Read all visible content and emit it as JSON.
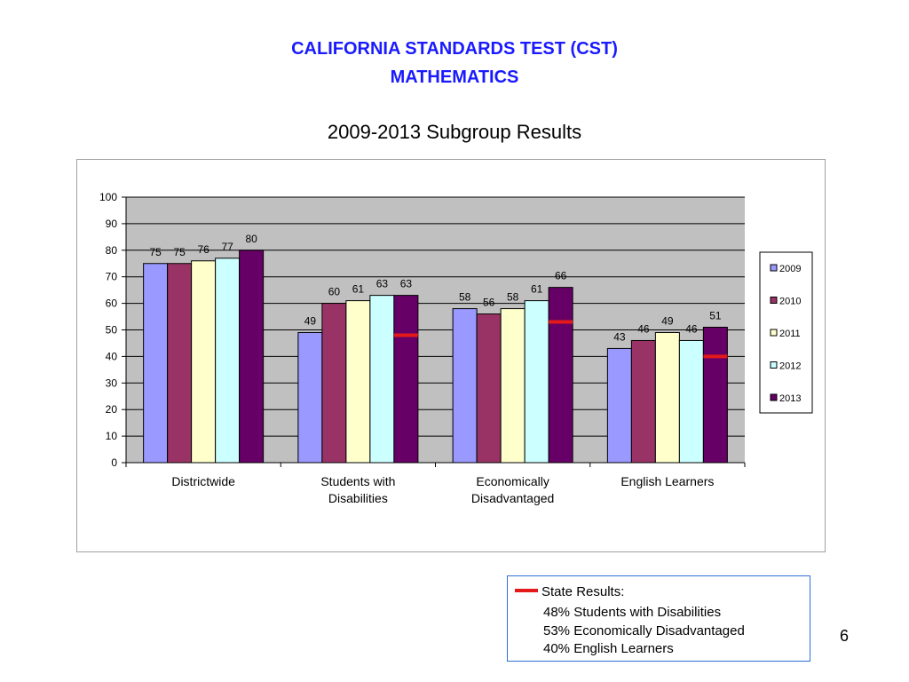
{
  "title_line1": "CALIFORNIA STANDARDS TEST (CST)",
  "title_line2": "MATHEMATICS",
  "subtitle": "2009-2013 Subgroup Results",
  "chart_data": {
    "type": "bar",
    "title": "",
    "xlabel": "",
    "ylabel": "",
    "ylim": [
      0,
      100
    ],
    "yticks": [
      0,
      10,
      20,
      30,
      40,
      50,
      60,
      70,
      80,
      90,
      100
    ],
    "grid": true,
    "legend_position": "right",
    "categories": [
      "Districtwide",
      "Students with Disabilities",
      "Economically Disadvantaged",
      "English Learners"
    ],
    "category_label_lines": [
      [
        "Districtwide"
      ],
      [
        "Students with",
        "Disabilities"
      ],
      [
        "Economically",
        "Disadvantaged"
      ],
      [
        "English Learners"
      ]
    ],
    "series": [
      {
        "name": "2009",
        "color": "#9999ff",
        "values": [
          75,
          49,
          58,
          43
        ]
      },
      {
        "name": "2010",
        "color": "#993366",
        "values": [
          75,
          60,
          56,
          46
        ]
      },
      {
        "name": "2011",
        "color": "#ffffcc",
        "values": [
          76,
          61,
          58,
          49
        ]
      },
      {
        "name": "2012",
        "color": "#ccffff",
        "values": [
          77,
          63,
          61,
          46
        ]
      },
      {
        "name": "2013",
        "color": "#660066",
        "values": [
          80,
          63,
          66,
          51
        ]
      }
    ],
    "state_results": [
      {
        "category": "Students with Disabilities",
        "value": 48
      },
      {
        "category": "Economically Disadvantaged",
        "value": 53
      },
      {
        "category": "English Learners",
        "value": 40
      }
    ],
    "plot_background": "#c0c0c0",
    "state_marker_color": "#e41a1a"
  },
  "note": {
    "heading": "State Results:",
    "lines": [
      "48% Students with Disabilities",
      "53% Economically Disadvantaged",
      "40% English Learners"
    ]
  },
  "page_number": "6"
}
